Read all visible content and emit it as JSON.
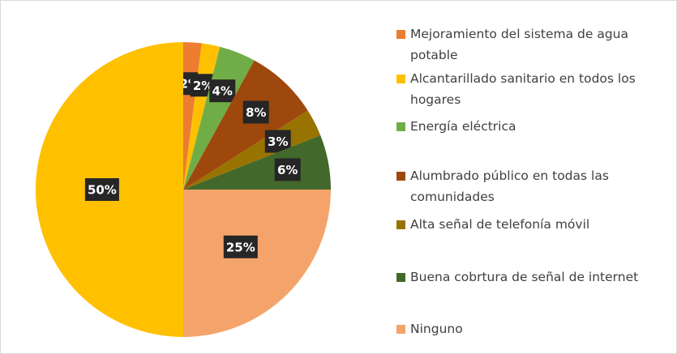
{
  "chart_data": {
    "type": "pie",
    "categories": [
      "Mejoramiento del sistema de agua potable",
      "Alcantarillado sanitario en todos los hogares",
      "Energía eléctrica",
      "Alumbrado público en todas las comunidades",
      "Alta señal de telefonía móvil",
      "Buena cobrtura de señal de internet",
      "Ninguno",
      null
    ],
    "values": [
      2,
      2,
      4,
      8,
      3,
      6,
      25,
      50
    ],
    "value_labels": [
      "2%",
      "2%",
      "4%",
      "8%",
      "3%",
      "6%",
      "25%",
      "50%"
    ],
    "colors": [
      "#ED7D31",
      "#FFC000",
      "#70AD47",
      "#9E480E",
      "#997300",
      "#43682B",
      "#F4A46A",
      "#FFC000"
    ],
    "legend": "right"
  }
}
